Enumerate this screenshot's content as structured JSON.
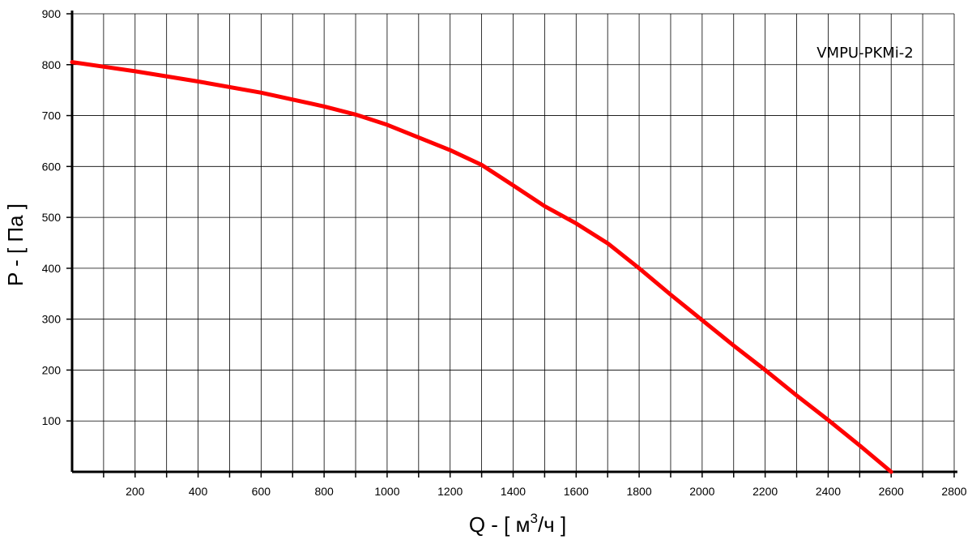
{
  "chart_data": {
    "type": "line",
    "annotation": "VMPU-PKMi-2",
    "xlabel": "Q - [ м³/ч ]",
    "xlabel_parts": {
      "main": "Q - [ м",
      "sup": "3",
      "tail": "/ч ]"
    },
    "ylabel": "P - [ Па ]",
    "xlim": [
      0,
      2800
    ],
    "ylim": [
      0,
      900
    ],
    "x_ticks": [
      200,
      400,
      600,
      800,
      1000,
      1200,
      1400,
      1600,
      1800,
      2000,
      2200,
      2400,
      2600,
      2800
    ],
    "y_ticks": [
      100,
      200,
      300,
      400,
      500,
      600,
      700,
      800,
      900
    ],
    "x_minor_step": 100,
    "grid": true,
    "series": [
      {
        "color": "#ff0000",
        "x": [
          0,
          200,
          400,
          600,
          800,
          900,
          1000,
          1100,
          1200,
          1300,
          1400,
          1500,
          1600,
          1700,
          1800,
          1900,
          2000,
          2100,
          2200,
          2300,
          2400,
          2500,
          2600
        ],
        "y": [
          805,
          787,
          767,
          745,
          718,
          702,
          682,
          657,
          632,
          603,
          563,
          522,
          488,
          449,
          400,
          348,
          298,
          248,
          200,
          150,
          102,
          52,
          0
        ]
      }
    ]
  }
}
